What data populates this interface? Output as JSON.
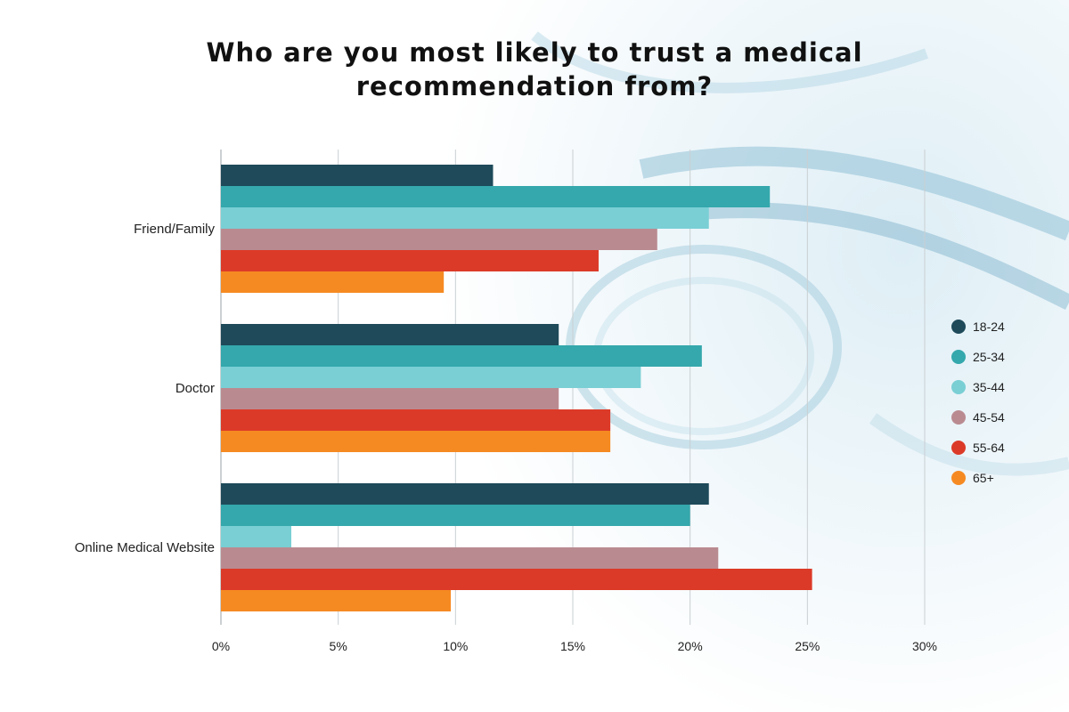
{
  "chart_data": {
    "type": "bar",
    "orientation": "horizontal",
    "title": "Who are you most likely to trust a medical recommendation from?",
    "title_lines": [
      "Who are you most likely to trust a medical",
      "recommendation from?"
    ],
    "categories": [
      "Friend/Family",
      "Doctor",
      "Online Medical Website"
    ],
    "series": [
      {
        "name": "18-24",
        "color": "#1e4a5a",
        "values": [
          11.6,
          14.4,
          20.8
        ]
      },
      {
        "name": "25-34",
        "color": "#34a8ac",
        "values": [
          23.4,
          20.5,
          20.0
        ]
      },
      {
        "name": "35-44",
        "color": "#79cfd4",
        "values": [
          20.8,
          17.9,
          3.0
        ]
      },
      {
        "name": "45-54",
        "color": "#b98b91",
        "values": [
          18.6,
          14.4,
          21.2
        ]
      },
      {
        "name": "55-64",
        "color": "#dc3a28",
        "values": [
          16.1,
          16.6,
          25.2
        ]
      },
      {
        "name": "65+",
        "color": "#f68a22",
        "values": [
          9.5,
          16.6,
          9.8
        ]
      }
    ],
    "x_ticks": [
      "0%",
      "5%",
      "10%",
      "15%",
      "20%",
      "25%",
      "30%"
    ],
    "xlim": [
      0,
      30
    ],
    "grid": true,
    "legend_position": "right"
  }
}
